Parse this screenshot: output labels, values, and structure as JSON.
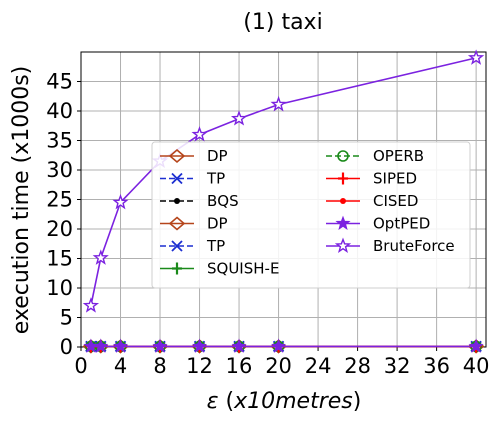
{
  "chart_data": {
    "type": "line",
    "title": "(1) taxi",
    "xlabel": "ε (x10metres)",
    "xlabel_parts": {
      "symbol": "ε",
      "open": " (",
      "unit_a": "x10",
      "unit_b": "metres",
      "close": ")"
    },
    "ylabel": "execution time (x1000s)",
    "xlim": [
      0,
      41
    ],
    "ylim": [
      0,
      50
    ],
    "xticks": [
      0,
      4,
      8,
      12,
      16,
      20,
      24,
      28,
      32,
      36,
      40
    ],
    "yticks": [
      0,
      5,
      10,
      15,
      20,
      25,
      30,
      35,
      40,
      45
    ],
    "x": [
      1,
      2,
      4,
      8,
      12,
      16,
      20,
      40
    ],
    "grid": true,
    "legend_position": "center",
    "series": [
      {
        "name": "DP",
        "color": "#b5451b",
        "dash": "solid",
        "marker": "diamond-open",
        "values": [
          0.1,
          0.1,
          0.1,
          0.1,
          0.1,
          0.1,
          0.1,
          0.1
        ]
      },
      {
        "name": "TP",
        "color": "#1c2fd1",
        "dash": "dashed",
        "marker": "x",
        "values": [
          0.1,
          0.1,
          0.1,
          0.1,
          0.1,
          0.1,
          0.1,
          0.1
        ]
      },
      {
        "name": "BQS",
        "color": "#000000",
        "dash": "dashed",
        "marker": "dot",
        "values": [
          0.1,
          0.1,
          0.1,
          0.1,
          0.1,
          0.1,
          0.1,
          0.1
        ]
      },
      {
        "name": "DP",
        "color": "#b5451b",
        "dash": "solid",
        "marker": "diamond-open",
        "values": [
          0.1,
          0.1,
          0.1,
          0.1,
          0.1,
          0.1,
          0.1,
          0.1
        ]
      },
      {
        "name": "TP",
        "color": "#1c2fd1",
        "dash": "dashed",
        "marker": "x",
        "values": [
          0.1,
          0.1,
          0.1,
          0.1,
          0.1,
          0.1,
          0.1,
          0.1
        ]
      },
      {
        "name": "SQUISH-E",
        "color": "#1a8a1a",
        "dash": "solid",
        "marker": "plus",
        "values": [
          0.1,
          0.1,
          0.1,
          0.1,
          0.1,
          0.1,
          0.1,
          0.1
        ]
      },
      {
        "name": "OPERB",
        "color": "#1a8a1a",
        "dash": "dashed",
        "marker": "circle-open",
        "values": [
          0.1,
          0.1,
          0.1,
          0.1,
          0.1,
          0.1,
          0.1,
          0.1
        ]
      },
      {
        "name": "SIPED",
        "color": "#ff0000",
        "dash": "solid",
        "marker": "plus",
        "values": [
          0.1,
          0.1,
          0.1,
          0.1,
          0.1,
          0.1,
          0.1,
          0.1
        ]
      },
      {
        "name": "CISED",
        "color": "#ff0000",
        "dash": "solid",
        "marker": "dot",
        "values": [
          0.1,
          0.1,
          0.1,
          0.1,
          0.1,
          0.1,
          0.1,
          0.1
        ]
      },
      {
        "name": "OptPED",
        "color": "#7b22e0",
        "dash": "solid",
        "marker": "star",
        "values": [
          0.1,
          0.1,
          0.1,
          0.1,
          0.1,
          0.1,
          0.1,
          0.1
        ]
      },
      {
        "name": "BruteForce",
        "color": "#7b22e0",
        "dash": "solid",
        "marker": "star-open",
        "values": [
          7.0,
          15.1,
          24.5,
          31.5,
          36.0,
          38.7,
          41.1,
          49.0
        ]
      }
    ]
  }
}
